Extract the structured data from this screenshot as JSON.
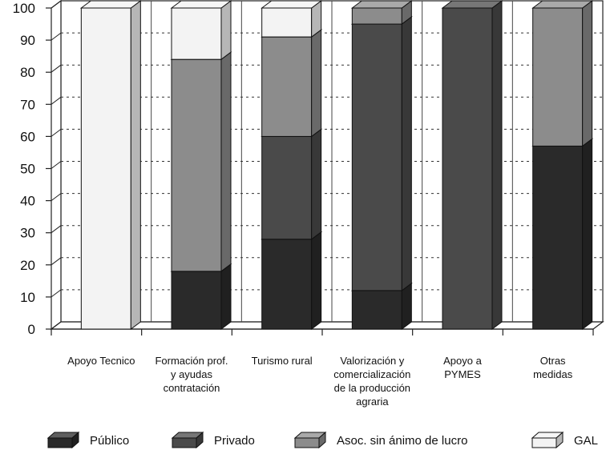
{
  "chart_data": {
    "type": "bar",
    "stacked": true,
    "style": "3d",
    "title": "",
    "xlabel": "",
    "ylabel": "",
    "ylim": [
      0,
      100
    ],
    "yticks": [
      "0",
      "10",
      "20",
      "30",
      "40",
      "50",
      "60",
      "70",
      "80",
      "90",
      "100"
    ],
    "grid": true,
    "legend_position": "bottom",
    "categories": [
      [
        "Apoyo Tecnico"
      ],
      [
        "Formación prof.",
        "y ayudas",
        "contratación"
      ],
      [
        "Turismo rural"
      ],
      [
        "Valorización y",
        "comercialización",
        "de la producción",
        "agraria"
      ],
      [
        "Apoyo a",
        "PYMES"
      ],
      [
        "Otras",
        "medidas"
      ]
    ],
    "series": [
      {
        "name": "Público",
        "color": "#2a2a2a",
        "values": [
          0,
          18,
          28,
          12,
          0,
          57
        ]
      },
      {
        "name": "Privado",
        "color": "#4a4a4a",
        "values": [
          0,
          0,
          32,
          83,
          100,
          0
        ]
      },
      {
        "name": "Asoc. sin ánimo de lucro",
        "color": "#8c8c8c",
        "values": [
          0,
          66,
          31,
          5,
          0,
          43
        ]
      },
      {
        "name": "GAL",
        "color": "#f3f3f3",
        "values": [
          100,
          16,
          9,
          0,
          0,
          0
        ]
      }
    ]
  }
}
